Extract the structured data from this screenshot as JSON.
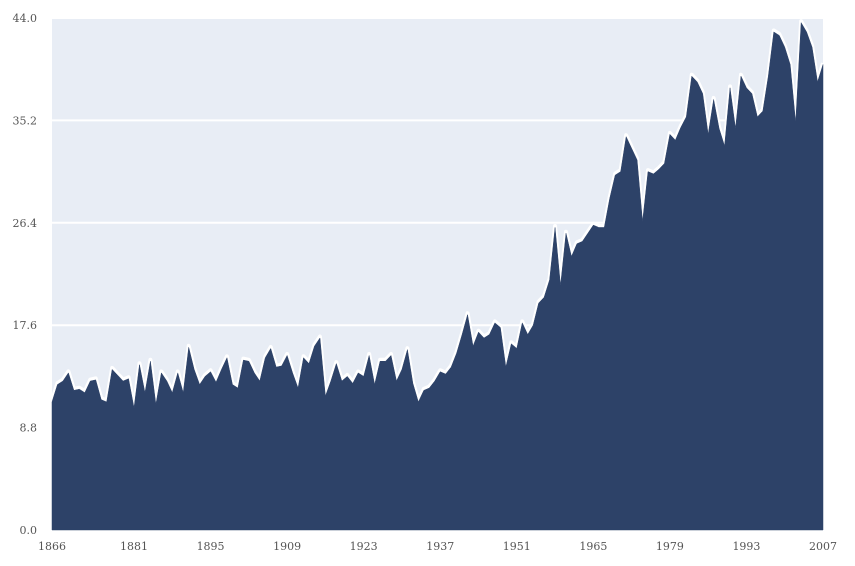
{
  "chart_data": {
    "type": "area",
    "title": "",
    "xlabel": "",
    "ylabel": "",
    "xlim": [
      1866,
      2007
    ],
    "ylim": [
      0,
      44
    ],
    "grid": true,
    "x_ticks": [
      "1866",
      "1881",
      "1895",
      "1909",
      "1923",
      "1937",
      "1951",
      "1965",
      "1979",
      "1993",
      "2007"
    ],
    "y_ticks": [
      "0.0",
      "8.8",
      "17.6",
      "26.4",
      "35.2",
      "44.0"
    ],
    "colors": {
      "plot_bg": "#e8edf5",
      "area": "#2d4268",
      "outline": "#ffffff",
      "grid": "#ffffff"
    },
    "series": [
      {
        "x": [
          1866,
          1867,
          1868,
          1869,
          1870,
          1871,
          1872,
          1873,
          1874,
          1875,
          1876,
          1877,
          1878,
          1879,
          1880,
          1881,
          1882,
          1883,
          1884,
          1885,
          1886,
          1887,
          1888,
          1889,
          1890,
          1891,
          1892,
          1893,
          1894,
          1895,
          1896,
          1897,
          1898,
          1899,
          1900,
          1901,
          1902,
          1903,
          1904,
          1905,
          1906,
          1907,
          1908,
          1909,
          1910,
          1911,
          1912,
          1913,
          1914,
          1915,
          1916,
          1917,
          1918,
          1919,
          1920,
          1921,
          1922,
          1923,
          1924,
          1925,
          1926,
          1927,
          1928,
          1929,
          1930,
          1931,
          1932,
          1933,
          1934,
          1935,
          1936,
          1937,
          1938,
          1939,
          1940,
          1941,
          1942,
          1943,
          1944,
          1945,
          1946,
          1947,
          1948,
          1949,
          1950,
          1951,
          1952,
          1953,
          1954,
          1955,
          1956,
          1957,
          1958,
          1959,
          1960,
          1961,
          1962,
          1963,
          1964,
          1965,
          1966,
          1967,
          1968,
          1969,
          1970,
          1971,
          1972,
          1973,
          1974,
          1975,
          1976,
          1977,
          1978,
          1979,
          1980,
          1981,
          1982,
          1983,
          1984,
          1985,
          1986,
          1987,
          1988,
          1989,
          1990,
          1991,
          1992,
          1993,
          1994,
          1995,
          1996,
          1997,
          1998,
          1999,
          2000,
          2001,
          2002,
          2003,
          2004,
          2005,
          2006,
          2007
        ],
        "values": [
          11.0,
          12.5,
          12.8,
          13.5,
          12.0,
          12.1,
          11.8,
          12.8,
          12.9,
          11.2,
          11.0,
          13.8,
          13.3,
          12.8,
          13.0,
          10.5,
          14.2,
          11.8,
          14.5,
          10.8,
          13.5,
          12.8,
          11.8,
          13.5,
          11.8,
          15.7,
          13.8,
          12.5,
          13.2,
          13.6,
          12.7,
          13.8,
          14.8,
          12.5,
          12.2,
          14.6,
          14.5,
          13.5,
          12.8,
          14.8,
          15.6,
          14.0,
          14.1,
          15.0,
          13.5,
          12.2,
          14.8,
          14.3,
          15.8,
          16.5,
          11.5,
          12.8,
          14.3,
          12.8,
          13.2,
          12.6,
          13.5,
          13.2,
          15.0,
          12.5,
          14.5,
          14.5,
          15.0,
          12.8,
          13.8,
          15.5,
          12.6,
          11.0,
          12.0,
          12.2,
          12.8,
          13.6,
          13.4,
          14.0,
          15.2,
          16.8,
          18.5,
          15.8,
          17.0,
          16.5,
          16.8,
          17.8,
          17.4,
          14.0,
          16.0,
          15.6,
          17.8,
          16.8,
          17.6,
          19.5,
          20.0,
          21.5,
          26.0,
          21.0,
          25.5,
          23.5,
          24.6,
          24.8,
          25.5,
          26.2,
          26.0,
          26.0,
          28.5,
          30.5,
          30.8,
          33.8,
          32.8,
          31.8,
          26.5,
          30.8,
          30.6,
          31.0,
          31.5,
          34.0,
          33.5,
          34.6,
          35.5,
          39.0,
          38.5,
          37.5,
          34.0,
          37.0,
          34.5,
          33.0,
          38.0,
          34.5,
          39.0,
          38.0,
          37.5,
          35.5,
          36.0,
          39.0,
          42.8,
          42.5,
          41.5,
          40.0,
          35.0,
          43.6,
          42.8,
          41.5,
          38.5,
          40.0
        ]
      }
    ]
  }
}
